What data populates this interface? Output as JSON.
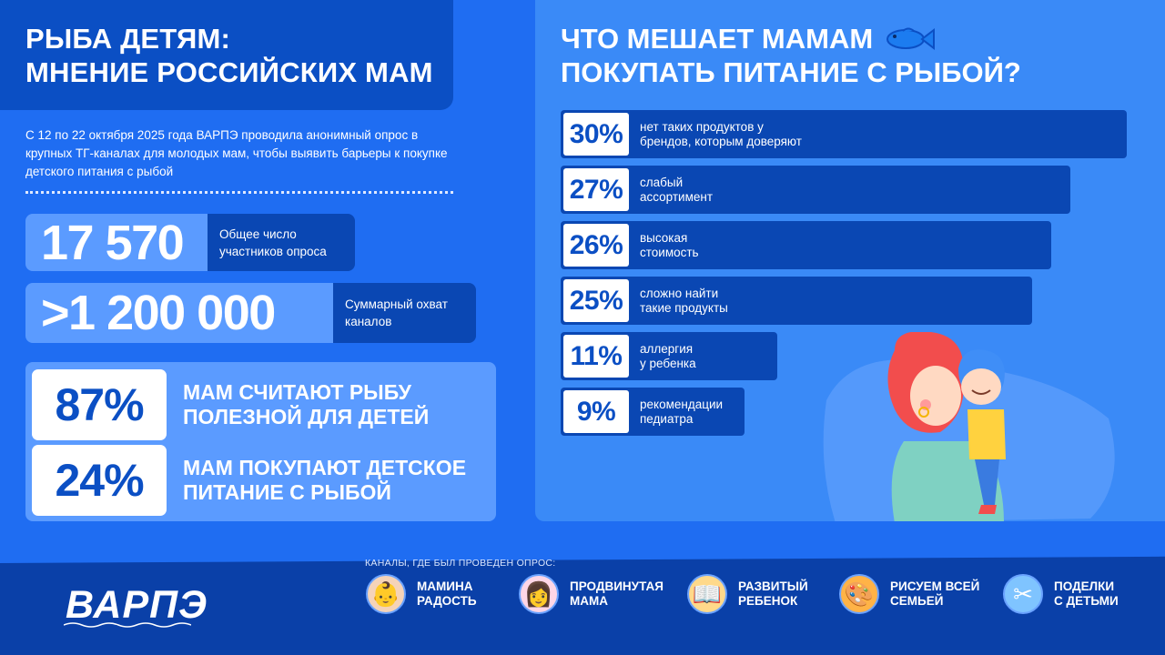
{
  "header": {
    "title": "РЫБА ДЕТЯМ:\nМНЕНИЕ РОССИЙСКИХ МАМ",
    "intro": "С 12 по 22 октября 2025 года ВАРПЭ проводила анонимный опрос в крупных ТГ-каналах для молодых мам, чтобы выявить барьеры к покупке детского питания с рыбой"
  },
  "stats": [
    {
      "value": "17 570",
      "label": "Общее число\nучастников опроса"
    },
    {
      "value": ">1 200 000",
      "label": "Суммарный охват\nканалов"
    }
  ],
  "percent_facts": [
    {
      "value": "87%",
      "text": "МАМ СЧИТАЮТ РЫБУ\nПОЛЕЗНОЙ ДЛЯ ДЕТЕЙ"
    },
    {
      "value": "24%",
      "text": "МАМ ПОКУПАЮТ ДЕТСКОЕ\nПИТАНИЕ С РЫБОЙ"
    }
  ],
  "right_title": "ЧТО МЕШАЕТ МАМАМ\nПОКУПАТЬ ПИТАНИЕ С РЫБОЙ?",
  "chart_data": {
    "type": "bar",
    "title": "ЧТО МЕШАЕТ МАМАМ ПОКУПАТЬ ПИТАНИЕ С РЫБОЙ?",
    "orientation": "horizontal",
    "categories": [
      "нет таких продуктов у\nбрендов, которым доверяют",
      "слабый\nассортимент",
      "высокая\nстоимость",
      "сложно найти\nтакие продукты",
      "аллергия\nу ребенка",
      "рекомендации\nпедиатра"
    ],
    "values": [
      30,
      27,
      26,
      25,
      11,
      9
    ],
    "value_labels": [
      "30%",
      "27%",
      "26%",
      "25%",
      "11%",
      "9%"
    ],
    "unit": "%"
  },
  "footer": {
    "logo": "ВАРПЭ",
    "channels_title": "КАНАЛЫ, ГДЕ БЫЛ ПРОВЕДЕН ОПРОС:",
    "channels": [
      {
        "label": "МАМИНА\nРАДОСТЬ",
        "icon": "baby-face-icon",
        "color": "#f5d3b8",
        "glyph": "👶"
      },
      {
        "label": "ПРОДВИНУТАЯ\nМАМА",
        "icon": "mom-avatar-icon",
        "color": "#ffd6e6",
        "glyph": "👩"
      },
      {
        "label": "РАЗВИТЫЙ\nРЕБЕНОК",
        "icon": "reading-child-icon",
        "color": "#ffd98a",
        "glyph": "📖"
      },
      {
        "label": "РИСУЕМ ВСЕЙ\nСЕМЬЕЙ",
        "icon": "drawing-child-icon",
        "color": "#ffb347",
        "glyph": "🎨"
      },
      {
        "label": "ПОДЕЛКИ\nС ДЕТЬМИ",
        "icon": "crafts-icon",
        "color": "#7fc4ff",
        "glyph": "✂"
      }
    ]
  },
  "colors": {
    "background": "#1f6df2",
    "dark_blue": "#0a47b3",
    "light_blue": "#5b9bff",
    "panel": "#3a8af7",
    "footer": "#0a40a8"
  }
}
